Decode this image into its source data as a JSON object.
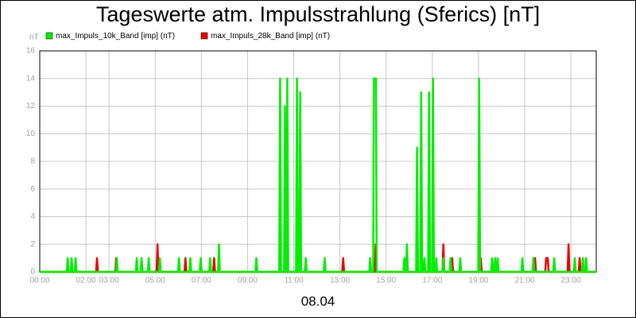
{
  "chart_data": {
    "type": "line",
    "title": "Tageswerte atm. Impulsstrahlung (Sferics) [nT]",
    "y_label": "nT",
    "x_label": "08.04",
    "xlim": [
      0,
      24.1
    ],
    "ylim": [
      0,
      16
    ],
    "yticks": [
      0,
      2,
      4,
      6,
      8,
      10,
      12,
      14,
      16
    ],
    "xticks": [
      {
        "value": 0,
        "label": "00:00"
      },
      {
        "value": 2,
        "label": "02:00"
      },
      {
        "value": 3,
        "label": "03:00"
      },
      {
        "value": 5,
        "label": "05:00"
      },
      {
        "value": 7,
        "label": "07:00"
      },
      {
        "value": 9,
        "label": "09:00"
      },
      {
        "value": 11,
        "label": "11:00"
      },
      {
        "value": 13,
        "label": "13:00"
      },
      {
        "value": 15,
        "label": "15:00"
      },
      {
        "value": 17,
        "label": "17:00"
      },
      {
        "value": 19,
        "label": "19:00"
      },
      {
        "value": 21,
        "label": "21:00"
      },
      {
        "value": 23,
        "label": "23:00"
      }
    ],
    "grid": true,
    "series": [
      {
        "name": "max_Impuls_10k_Band [imp] (nT)",
        "color": "#00ee00",
        "x": [
          0,
          1.17,
          1.21,
          1.25,
          1.34,
          1.38,
          1.42,
          1.51,
          1.55,
          1.59,
          3.3,
          3.34,
          3.38,
          4.16,
          4.2,
          4.24,
          4.37,
          4.41,
          4.45,
          4.68,
          4.72,
          4.76,
          5.16,
          5.2,
          5.24,
          5.99,
          6.03,
          6.07,
          6.48,
          6.52,
          6.56,
          6.93,
          6.97,
          7.01,
          7.34,
          7.38,
          7.42,
          7.72,
          7.76,
          7.8,
          9.34,
          9.38,
          9.42,
          10.37,
          10.41,
          10.45,
          10.58,
          10.62,
          10.66,
          10.68,
          10.72,
          10.76,
          11.1,
          11.14,
          11.18,
          11.24,
          11.28,
          11.32,
          11.48,
          11.52,
          11.56,
          12.3,
          12.34,
          12.38,
          14.27,
          14.31,
          14.35,
          14.44,
          14.47,
          14.56,
          14.59,
          15.75,
          15.79,
          15.83,
          15.86,
          15.9,
          15.94,
          16.3,
          16.34,
          16.38,
          16.48,
          16.52,
          16.56,
          16.62,
          16.66,
          16.7,
          16.82,
          16.86,
          16.9,
          16.99,
          17.03,
          17.07,
          17.13,
          17.17,
          17.21,
          17.44,
          17.48,
          17.52,
          17.75,
          17.79,
          17.83,
          18.17,
          18.21,
          18.25,
          18.99,
          19.03,
          19.07,
          19.55,
          19.59,
          19.63,
          19.68,
          19.72,
          19.76,
          19.79,
          19.83,
          19.87,
          20.86,
          20.9,
          20.94,
          21.34,
          21.38,
          21.42,
          22.24,
          22.28,
          22.32,
          23.13,
          23.17,
          23.21,
          23.48,
          23.52,
          23.56,
          23.62,
          23.66,
          23.7,
          24.1
        ],
        "values": [
          0,
          0,
          1,
          0,
          0,
          1,
          0,
          0,
          1,
          0,
          0,
          1,
          0,
          0,
          1,
          0,
          0,
          1,
          0,
          0,
          1,
          0,
          0,
          1,
          0,
          0,
          1,
          0,
          0,
          1,
          0,
          0,
          1,
          0,
          0,
          1,
          0,
          0,
          2,
          0,
          0,
          1,
          0,
          0,
          14,
          0,
          0,
          12,
          0,
          0,
          14,
          0,
          0,
          14,
          0,
          0,
          13,
          0,
          0,
          1,
          0,
          0,
          1,
          0,
          0,
          1,
          0,
          0,
          14,
          14,
          0,
          0,
          1,
          0,
          0,
          2,
          0,
          0,
          9,
          0,
          0,
          13,
          0,
          0,
          1,
          0,
          0,
          13,
          0,
          0,
          14,
          0,
          0,
          1,
          0,
          0,
          1,
          0,
          0,
          1,
          0,
          0,
          1,
          0,
          0,
          14,
          0,
          0,
          1,
          0,
          0,
          1,
          0,
          0,
          1,
          0,
          0,
          1,
          0,
          0,
          1,
          0,
          0,
          1,
          0,
          0,
          1,
          0,
          0,
          1,
          0,
          0,
          1,
          0,
          0
        ]
      },
      {
        "name": "max_Impuls_28k_Band [imp] (nT)",
        "color": "#ee0000",
        "x": [
          0,
          2.44,
          2.48,
          2.52,
          3.27,
          3.31,
          3.35,
          5.06,
          5.1,
          5.14,
          6.27,
          6.31,
          6.35,
          7.51,
          7.55,
          7.59,
          13.1,
          13.14,
          13.18,
          14.51,
          14.55,
          14.59,
          17.44,
          17.48,
          17.52,
          17.82,
          17.86,
          17.9,
          19.06,
          19.1,
          19.14,
          21.41,
          21.45,
          21.49,
          21.89,
          21.93,
          22.0,
          22.04,
          22.86,
          22.9,
          22.94,
          23.34,
          23.38,
          23.42,
          24.1
        ],
        "values": [
          0,
          0,
          1,
          0,
          0,
          1,
          0,
          0,
          2,
          0,
          0,
          1,
          0,
          0,
          1,
          0,
          0,
          1,
          0,
          0,
          2,
          0,
          0,
          2,
          0,
          0,
          1,
          0,
          0,
          1,
          0,
          0,
          1,
          0,
          0,
          1,
          1,
          0,
          0,
          2,
          0,
          0,
          1,
          0,
          0
        ]
      }
    ]
  }
}
